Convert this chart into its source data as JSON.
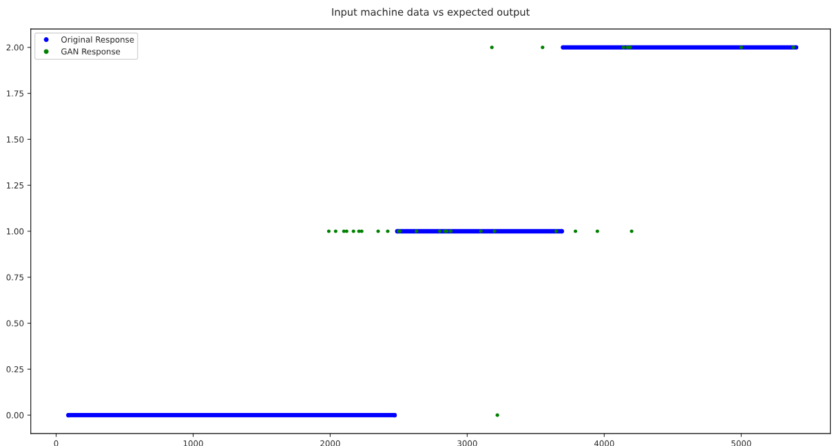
{
  "chart_data": {
    "type": "scatter",
    "title": "Input machine data vs expected output",
    "xlim": [
      -185,
      5650
    ],
    "xticks": [
      0,
      1000,
      2000,
      3000,
      4000,
      5000
    ],
    "ylim": [
      -0.1,
      2.1
    ],
    "yticks": [
      {
        "value": 0,
        "label": "0.00"
      },
      {
        "value": 0.25,
        "label": "0.25"
      },
      {
        "value": 0.5,
        "label": "0.50"
      },
      {
        "value": 0.75,
        "label": "0.75"
      },
      {
        "value": 1,
        "label": "1.00"
      },
      {
        "value": 1.25,
        "label": "1.25"
      },
      {
        "value": 1.5,
        "label": "1.50"
      },
      {
        "value": 1.75,
        "label": "1.75"
      },
      {
        "value": 2,
        "label": "2.00"
      }
    ],
    "grid": false,
    "legend": "top left",
    "marker": "circle",
    "series": [
      {
        "name": "Original Response",
        "type": "line",
        "color": "#0000ff",
        "x": [
          90,
          2470,
          2480,
          2490,
          3690,
          3695,
          3700,
          5400
        ],
        "values": [
          0,
          0,
          null,
          1,
          1,
          null,
          2,
          2
        ]
      },
      {
        "name": "GAN Response",
        "color": "#008000",
        "x": [
          1990,
          2040,
          2100,
          2120,
          2170,
          2210,
          2230,
          2350,
          2420,
          2500,
          2510,
          2630,
          2800,
          2840,
          2850,
          2880,
          3100,
          3200,
          3650,
          3790,
          3950,
          4200,
          3180,
          3550,
          4140,
          4170,
          4190,
          5000,
          5380,
          3220
        ],
        "values": [
          1,
          1,
          1,
          1,
          1,
          1,
          1,
          1,
          1,
          1,
          1,
          1,
          1,
          1,
          1,
          1,
          1,
          1,
          1,
          1,
          1,
          1,
          2,
          2,
          2,
          2,
          2,
          2,
          2,
          0
        ]
      }
    ]
  }
}
